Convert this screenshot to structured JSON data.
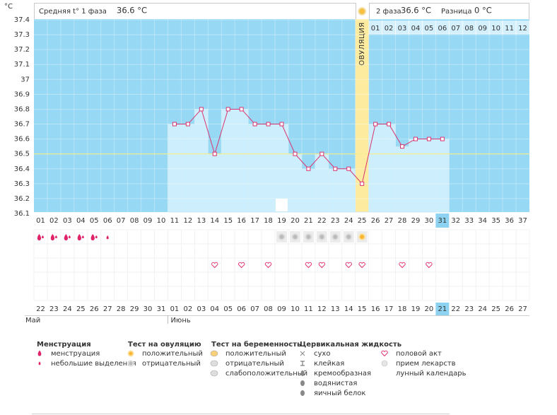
{
  "header": {
    "unit": "°C",
    "phase1_label": "Средняя t° 1 фаза",
    "phase1_value": "36.6 °C",
    "phase2_label": "2 фаза",
    "phase2_value": "36.6 °C",
    "diff_label": "Разница",
    "diff_value": "0 °C"
  },
  "chart_data": {
    "type": "line",
    "categories": [
      "01",
      "02",
      "03",
      "04",
      "05",
      "06",
      "07",
      "08",
      "09",
      "10",
      "11",
      "12",
      "13",
      "14",
      "15",
      "16",
      "17",
      "18",
      "19",
      "20",
      "21",
      "22",
      "23",
      "24",
      "25",
      "26",
      "27",
      "28",
      "29",
      "30",
      "31",
      "32",
      "33",
      "34",
      "35",
      "36",
      "37"
    ],
    "values": [
      null,
      null,
      null,
      null,
      null,
      null,
      null,
      null,
      null,
      null,
      36.7,
      36.7,
      36.8,
      36.5,
      36.8,
      36.8,
      36.7,
      36.7,
      36.7,
      36.5,
      36.4,
      36.5,
      36.4,
      36.4,
      36.3,
      36.7,
      36.7,
      36.55,
      36.6,
      36.6,
      36.6,
      null,
      null,
      null,
      null,
      null,
      null
    ],
    "color": "#d9336f",
    "ylim": [
      36.1,
      37.4
    ],
    "yticks": [
      36.1,
      36.2,
      36.3,
      36.4,
      36.5,
      36.6,
      36.7,
      36.8,
      36.9,
      37,
      37.1,
      37.2,
      37.3,
      37.4
    ],
    "cover_line": 36.5,
    "ovulation_label": "ОВУЛЯЦИЯ",
    "luteal_days": [
      "01",
      "02",
      "03",
      "04",
      "05",
      "06",
      "07",
      "08",
      "09",
      "10",
      "11",
      "12"
    ],
    "today": 31,
    "dates": [
      "22",
      "23",
      "24",
      "25",
      "26",
      "27",
      "28",
      "29",
      "30",
      "31",
      "01",
      "02",
      "03",
      "04",
      "05",
      "06",
      "07",
      "08",
      "09",
      "10",
      "11",
      "12",
      "13",
      "14",
      "15",
      "16",
      "17",
      "18",
      "19",
      "20",
      "21",
      "22",
      "23",
      "24",
      "25",
      "26",
      "27"
    ],
    "red_dates": [
      5,
      6,
      11,
      12,
      13,
      19,
      20,
      26,
      27,
      33,
      34
    ],
    "months": [
      {
        "label": "Май",
        "start": 1
      },
      {
        "label": "Июнь",
        "start": 11
      }
    ],
    "menstruation": [
      1,
      2,
      3,
      4,
      5
    ],
    "spotting": [
      6
    ],
    "ovulation_test_negative": [
      19,
      20,
      21,
      22,
      23,
      24
    ],
    "ovulation_test_positive": [
      25
    ],
    "intercourse": [
      14,
      16,
      18,
      21,
      22,
      24,
      25,
      28,
      30
    ],
    "lunar_calendar": [
      19
    ]
  },
  "legend": [
    {
      "title": "Менструация",
      "items": [
        "менструация",
        "небольшие выделения"
      ]
    },
    {
      "title": "Тест на овуляцию",
      "items": [
        "положительный",
        "отрицательный"
      ]
    },
    {
      "title": "Тест на беременность",
      "items": [
        "положительный",
        "отрицательный",
        "слабоположительный"
      ]
    },
    {
      "title": "Цервикальная жидкость",
      "items": [
        "сухо",
        "клейкая",
        "кремообразная",
        "водянистая",
        "яичный белок"
      ]
    },
    {
      "items": [
        "половой акт",
        "прием лекарств",
        "лунный календарь"
      ]
    }
  ]
}
